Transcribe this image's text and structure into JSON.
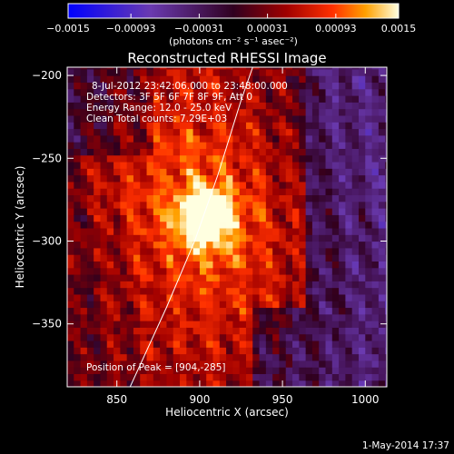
{
  "chart_data": {
    "type": "heatmap",
    "title": "Reconstructed RHESSI Image",
    "xlabel": "Heliocentric X (arcsec)",
    "ylabel": "Heliocentric Y (arcsec)",
    "xlim": [
      820,
      1013
    ],
    "ylim": [
      -388,
      -195
    ],
    "x_ticks": [
      850,
      900,
      950,
      1000
    ],
    "y_ticks": [
      -200,
      -250,
      -300,
      -350
    ],
    "colorbar": {
      "min": -0.0015,
      "max": 0.0015,
      "tick_values": [
        -0.0015,
        -0.00093,
        -0.00031,
        0.00031,
        0.00093,
        0.0015
      ],
      "tick_labels": [
        "-0.0015",
        "-0.00093",
        "-0.00031",
        "0.00031",
        "0.00093",
        "0.0015"
      ],
      "units_label": "(photons cm⁻² s⁻¹ asec⁻²)"
    },
    "annotations": [
      "8-Jul-2012 23:42:06.000 to 23:48:00.000",
      "Detectors: 3F 5F 6F 7F 8F 9F, Att 0",
      "Energy Range: 12.0 - 25.0 keV",
      "Clean    Total counts: 7.29E+03"
    ],
    "peak_label": "Position of Peak = [904,-285]",
    "peak": {
      "x": 904,
      "y": -285
    },
    "limb_curve": [
      [
        858,
        -388
      ],
      [
        880,
        -340
      ],
      [
        897,
        -300
      ],
      [
        911,
        -260
      ],
      [
        925,
        -215
      ],
      [
        932,
        -195
      ]
    ]
  },
  "footer": {
    "date": "1-May-2014 17:37"
  }
}
